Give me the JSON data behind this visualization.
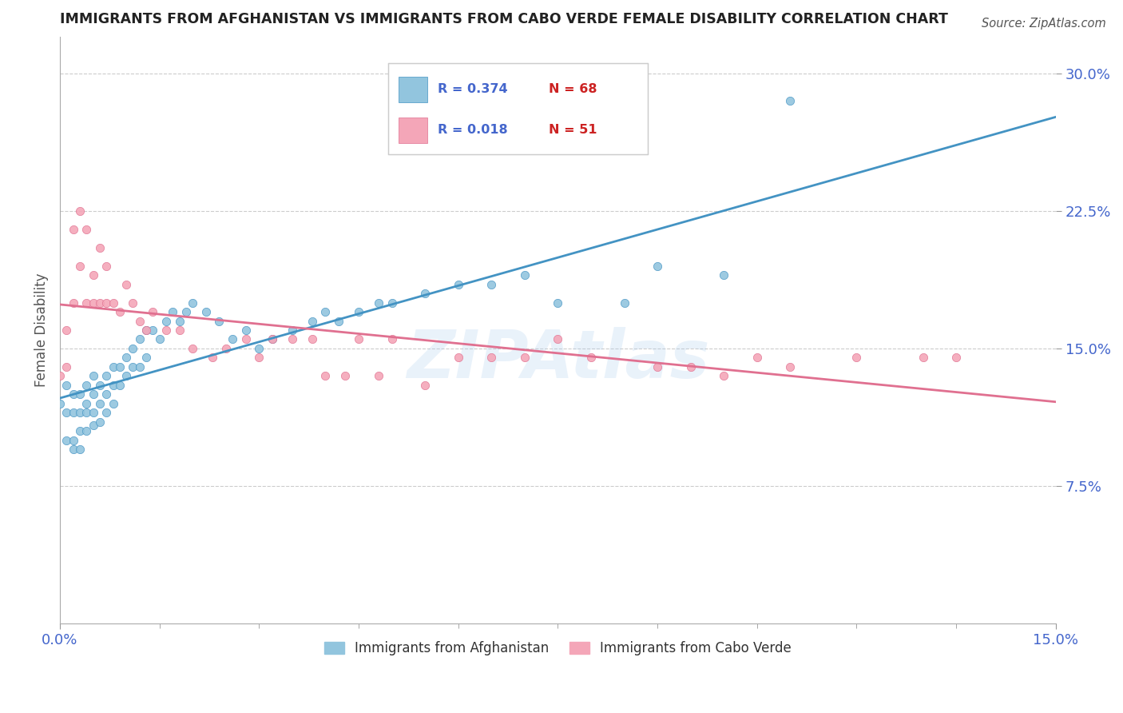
{
  "title": "IMMIGRANTS FROM AFGHANISTAN VS IMMIGRANTS FROM CABO VERDE FEMALE DISABILITY CORRELATION CHART",
  "source": "Source: ZipAtlas.com",
  "ylabel": "Female Disability",
  "xlim": [
    0.0,
    0.15
  ],
  "ylim": [
    0.0,
    0.32
  ],
  "yticks": [
    0.075,
    0.15,
    0.225,
    0.3
  ],
  "ytick_labels": [
    "7.5%",
    "15.0%",
    "22.5%",
    "30.0%"
  ],
  "blue_color": "#92c5de",
  "pink_color": "#f4a6b8",
  "blue_line_color": "#4393c3",
  "pink_line_color": "#e07090",
  "label_blue": "Immigrants from Afghanistan",
  "label_pink": "Immigrants from Cabo Verde",
  "watermark": "ZIPAtlas",
  "title_color": "#222222",
  "axis_tick_color": "#4466cc",
  "grid_color": "#cccccc",
  "legend_R_blue": "R = 0.374",
  "legend_N_blue": "N = 68",
  "legend_R_pink": "R = 0.018",
  "legend_N_pink": "N = 51",
  "blue_scatter_x": [
    0.0,
    0.001,
    0.001,
    0.001,
    0.002,
    0.002,
    0.002,
    0.002,
    0.003,
    0.003,
    0.003,
    0.003,
    0.004,
    0.004,
    0.004,
    0.004,
    0.005,
    0.005,
    0.005,
    0.005,
    0.006,
    0.006,
    0.006,
    0.007,
    0.007,
    0.007,
    0.008,
    0.008,
    0.008,
    0.009,
    0.009,
    0.01,
    0.01,
    0.011,
    0.011,
    0.012,
    0.012,
    0.013,
    0.013,
    0.014,
    0.015,
    0.016,
    0.017,
    0.018,
    0.019,
    0.02,
    0.022,
    0.024,
    0.026,
    0.028,
    0.03,
    0.032,
    0.035,
    0.038,
    0.04,
    0.042,
    0.045,
    0.048,
    0.05,
    0.055,
    0.06,
    0.065,
    0.07,
    0.075,
    0.085,
    0.09,
    0.1,
    0.11
  ],
  "blue_scatter_y": [
    0.12,
    0.115,
    0.13,
    0.1,
    0.125,
    0.115,
    0.1,
    0.095,
    0.125,
    0.115,
    0.105,
    0.095,
    0.13,
    0.12,
    0.115,
    0.105,
    0.135,
    0.125,
    0.115,
    0.108,
    0.13,
    0.12,
    0.11,
    0.135,
    0.125,
    0.115,
    0.14,
    0.13,
    0.12,
    0.14,
    0.13,
    0.145,
    0.135,
    0.15,
    0.14,
    0.155,
    0.14,
    0.16,
    0.145,
    0.16,
    0.155,
    0.165,
    0.17,
    0.165,
    0.17,
    0.175,
    0.17,
    0.165,
    0.155,
    0.16,
    0.15,
    0.155,
    0.16,
    0.165,
    0.17,
    0.165,
    0.17,
    0.175,
    0.175,
    0.18,
    0.185,
    0.185,
    0.19,
    0.175,
    0.175,
    0.195,
    0.19,
    0.285
  ],
  "pink_scatter_x": [
    0.0,
    0.001,
    0.001,
    0.002,
    0.002,
    0.003,
    0.003,
    0.004,
    0.004,
    0.005,
    0.005,
    0.006,
    0.006,
    0.007,
    0.007,
    0.008,
    0.009,
    0.01,
    0.011,
    0.012,
    0.013,
    0.014,
    0.016,
    0.018,
    0.02,
    0.023,
    0.025,
    0.028,
    0.03,
    0.032,
    0.035,
    0.038,
    0.04,
    0.043,
    0.045,
    0.048,
    0.05,
    0.055,
    0.06,
    0.065,
    0.07,
    0.075,
    0.08,
    0.09,
    0.095,
    0.1,
    0.105,
    0.11,
    0.12,
    0.13,
    0.135
  ],
  "pink_scatter_y": [
    0.135,
    0.14,
    0.16,
    0.215,
    0.175,
    0.225,
    0.195,
    0.215,
    0.175,
    0.19,
    0.175,
    0.205,
    0.175,
    0.195,
    0.175,
    0.175,
    0.17,
    0.185,
    0.175,
    0.165,
    0.16,
    0.17,
    0.16,
    0.16,
    0.15,
    0.145,
    0.15,
    0.155,
    0.145,
    0.155,
    0.155,
    0.155,
    0.135,
    0.135,
    0.155,
    0.135,
    0.155,
    0.13,
    0.145,
    0.145,
    0.145,
    0.155,
    0.145,
    0.14,
    0.14,
    0.135,
    0.145,
    0.14,
    0.145,
    0.145,
    0.145
  ]
}
